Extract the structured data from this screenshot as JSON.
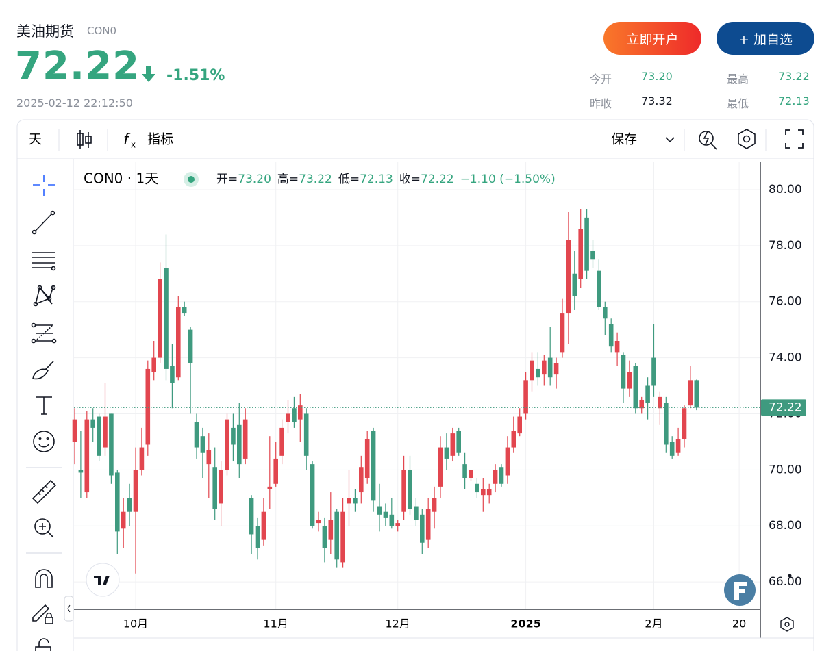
{
  "header": {
    "title": "美油期货",
    "code": "CON0",
    "price": "72.22",
    "change": "-1.51%",
    "timestamp": "2025-02-12 22:12:50",
    "buttons": [
      "立即开户",
      "+ 加自选"
    ],
    "stats": [
      {
        "label": "今开",
        "value": "73.20"
      },
      {
        "label": "最高",
        "value": "73.22"
      },
      {
        "label": "昨收",
        "value": "73.32"
      },
      {
        "label": "最低",
        "value": "72.13"
      }
    ]
  },
  "toolbar": {
    "interval": "天",
    "indicators": "指标",
    "save": "保存"
  },
  "legend": {
    "series_label": "CON0 · 1天",
    "items": [
      {
        "label": "开=",
        "value": "73.20"
      },
      {
        "label": "高=",
        "value": "73.22"
      },
      {
        "label": "低=",
        "value": "72.13"
      },
      {
        "label": "收=",
        "value": "72.22"
      }
    ],
    "change": "−1.10 (−1.50%)"
  },
  "chart_data": {
    "type": "candlestick",
    "up_color": "#e2464f",
    "down_color": "#3f9a7f",
    "categories": [
      null,
      null,
      null,
      null,
      null,
      null,
      null,
      null,
      null,
      null,
      "10月",
      null,
      null,
      null,
      null,
      null,
      null,
      null,
      null,
      null,
      null,
      null,
      null,
      null,
      null,
      null,
      null,
      null,
      null,
      null,
      null,
      null,
      null,
      "11月",
      null,
      null,
      null,
      null,
      null,
      null,
      null,
      null,
      null,
      null,
      null,
      null,
      null,
      null,
      null,
      null,
      null,
      null,
      null,
      "12月",
      null,
      null,
      null,
      null,
      null,
      null,
      null,
      null,
      null,
      null,
      null,
      null,
      null,
      null,
      null,
      null,
      null,
      null,
      null,
      null,
      "2025",
      null,
      null,
      null,
      null,
      null,
      null,
      null,
      null,
      null,
      null,
      null,
      null,
      null,
      null,
      null,
      null,
      null,
      null,
      null,
      null,
      "2月",
      null,
      null,
      null,
      null,
      null,
      null,
      null,
      null,
      null,
      null,
      null,
      null,
      null,
      "20"
    ],
    "open": [
      71.0,
      70.0,
      69.2,
      71.8,
      71.9,
      70.8,
      72.0,
      69.9,
      67.9,
      69.0,
      68.5,
      70.0,
      70.9,
      73.5,
      74.0,
      77.2,
      73.7,
      73.3,
      75.8,
      75.0,
      71.7,
      71.2,
      70.2,
      70.1,
      68.8,
      70.0,
      71.5,
      71.6,
      70.4,
      69.0,
      68.0,
      67.5,
      69.3,
      69.5,
      70.5,
      71.7,
      72.2,
      71.8,
      72.0,
      70.2,
      68.1,
      68.0,
      67.5,
      68.5,
      66.7,
      68.8,
      69.0,
      69.2,
      69.7,
      71.4,
      68.7,
      68.5,
      68.4,
      68.0,
      68.5,
      70.0,
      68.7,
      68.4,
      67.5,
      68.5,
      69.4,
      70.8,
      70.5,
      71.4,
      70.2,
      69.7,
      69.5,
      69.1,
      69.1,
      69.5,
      70.1,
      69.8,
      70.8,
      71.3,
      72.0,
      73.2,
      73.6,
      73.4,
      74.0,
      73.4,
      74.2,
      75.6,
      77.0,
      76.8,
      79.0,
      77.8,
      77.1,
      75.8,
      75.2,
      74.2,
      74.1,
      72.9,
      73.7,
      72.2,
      73.0,
      74.0,
      72.2,
      72.4,
      71.0,
      70.6,
      71.1,
      72.3,
      73.2,
      null,
      null,
      null,
      null,
      null,
      null,
      null
    ],
    "high": [
      72.2,
      71.4,
      72.1,
      72.2,
      72.0,
      73.1,
      72.0,
      70.0,
      69.0,
      69.5,
      70.8,
      71.5,
      73.9,
      74.6,
      77.4,
      78.4,
      74.5,
      76.2,
      76.0,
      75.1,
      72.0,
      71.5,
      71.3,
      70.8,
      70.3,
      72.0,
      72.0,
      72.4,
      72.2,
      69.1,
      68.3,
      69.0,
      71.2,
      71.0,
      71.8,
      72.5,
      72.6,
      72.7,
      72.2,
      70.3,
      68.5,
      68.3,
      69.2,
      68.6,
      69.0,
      70.0,
      69.3,
      70.5,
      71.4,
      71.5,
      69.5,
      68.8,
      69.0,
      68.2,
      70.5,
      70.5,
      69.0,
      68.6,
      69.0,
      69.4,
      71.2,
      71.3,
      71.5,
      71.5,
      70.6,
      70.0,
      69.7,
      69.7,
      69.5,
      70.2,
      70.2,
      71.2,
      71.9,
      72.2,
      73.5,
      74.2,
      74.2,
      74.1,
      75.1,
      74.0,
      76.1,
      79.2,
      77.8,
      79.3,
      79.3,
      78.2,
      77.5,
      76.0,
      75.4,
      74.9,
      74.2,
      73.9,
      73.8,
      72.6,
      73.3,
      75.2,
      72.8,
      72.6,
      71.2,
      71.5,
      72.3,
      73.7,
      73.22,
      null,
      null,
      null,
      null,
      null,
      null,
      null
    ],
    "low": [
      70.2,
      69.0,
      69.0,
      71.0,
      70.3,
      70.5,
      69.5,
      67.0,
      67.2,
      68.0,
      66.3,
      69.8,
      70.5,
      73.2,
      73.8,
      73.2,
      72.2,
      73.2,
      75.5,
      72.0,
      70.4,
      69.7,
      69.0,
      68.2,
      68.0,
      69.8,
      70.3,
      69.7,
      70.2,
      67.0,
      66.8,
      67.3,
      68.6,
      69.4,
      70.2,
      71.3,
      71.5,
      71.0,
      70.0,
      67.9,
      67.8,
      66.7,
      67.0,
      66.5,
      66.5,
      68.0,
      68.5,
      68.8,
      69.5,
      68.5,
      67.8,
      68.0,
      67.9,
      67.8,
      68.2,
      68.4,
      68.0,
      67.0,
      67.2,
      67.9,
      69.0,
      70.0,
      70.3,
      70.5,
      69.3,
      69.6,
      69.0,
      68.5,
      68.8,
      69.2,
      69.4,
      69.5,
      70.6,
      71.2,
      71.8,
      72.8,
      73.0,
      73.0,
      73.0,
      72.9,
      74.0,
      74.5,
      75.7,
      76.5,
      76.8,
      77.2,
      75.7,
      74.8,
      74.2,
      73.7,
      72.4,
      72.6,
      72.0,
      72.0,
      71.8,
      72.6,
      71.6,
      70.6,
      70.4,
      70.5,
      70.8,
      72.2,
      72.13,
      null,
      null,
      null,
      null,
      null,
      null,
      null
    ],
    "close": [
      71.8,
      69.9,
      71.8,
      71.5,
      70.5,
      71.9,
      69.8,
      67.8,
      68.5,
      68.5,
      70.0,
      70.8,
      73.6,
      74.0,
      76.8,
      73.6,
      73.1,
      75.8,
      75.6,
      73.8,
      70.8,
      70.6,
      70.7,
      68.6,
      70.0,
      71.8,
      70.9,
      70.2,
      71.8,
      67.7,
      67.2,
      68.5,
      69.4,
      70.4,
      71.5,
      72.0,
      71.7,
      72.3,
      70.5,
      68.0,
      68.2,
      67.2,
      68.2,
      66.8,
      68.5,
      69.0,
      68.8,
      70.1,
      71.1,
      68.9,
      68.4,
      68.3,
      68.0,
      68.1,
      70.0,
      68.6,
      68.2,
      67.4,
      68.6,
      69.0,
      70.8,
      70.4,
      71.3,
      70.6,
      69.7,
      70.0,
      69.2,
      69.3,
      69.3,
      70.0,
      69.5,
      70.8,
      71.4,
      71.9,
      73.2,
      73.9,
      73.3,
      73.9,
      73.3,
      73.8,
      75.6,
      78.2,
      76.2,
      78.6,
      77.1,
      77.5,
      75.8,
      75.4,
      74.4,
      74.6,
      72.9,
      73.5,
      72.2,
      72.5,
      72.4,
      73.0,
      72.6,
      70.9,
      70.5,
      71.1,
      72.2,
      73.2,
      72.22,
      null,
      null,
      null,
      null,
      null,
      null,
      null
    ],
    "last_price": {
      "value": 72.22,
      "label": "72.22"
    },
    "ylim": [
      65,
      81
    ],
    "yticks": [
      {
        "value": 66,
        "label": "66.00"
      },
      {
        "value": 68,
        "label": "68.00"
      },
      {
        "value": 70,
        "label": "70.00"
      },
      {
        "value": 72,
        "label": "72.00"
      },
      {
        "value": 74,
        "label": "74.00"
      },
      {
        "value": 76,
        "label": "76.00"
      },
      {
        "value": 78,
        "label": "78.00"
      },
      {
        "value": 80,
        "label": "80.00"
      }
    ],
    "grid": true
  }
}
